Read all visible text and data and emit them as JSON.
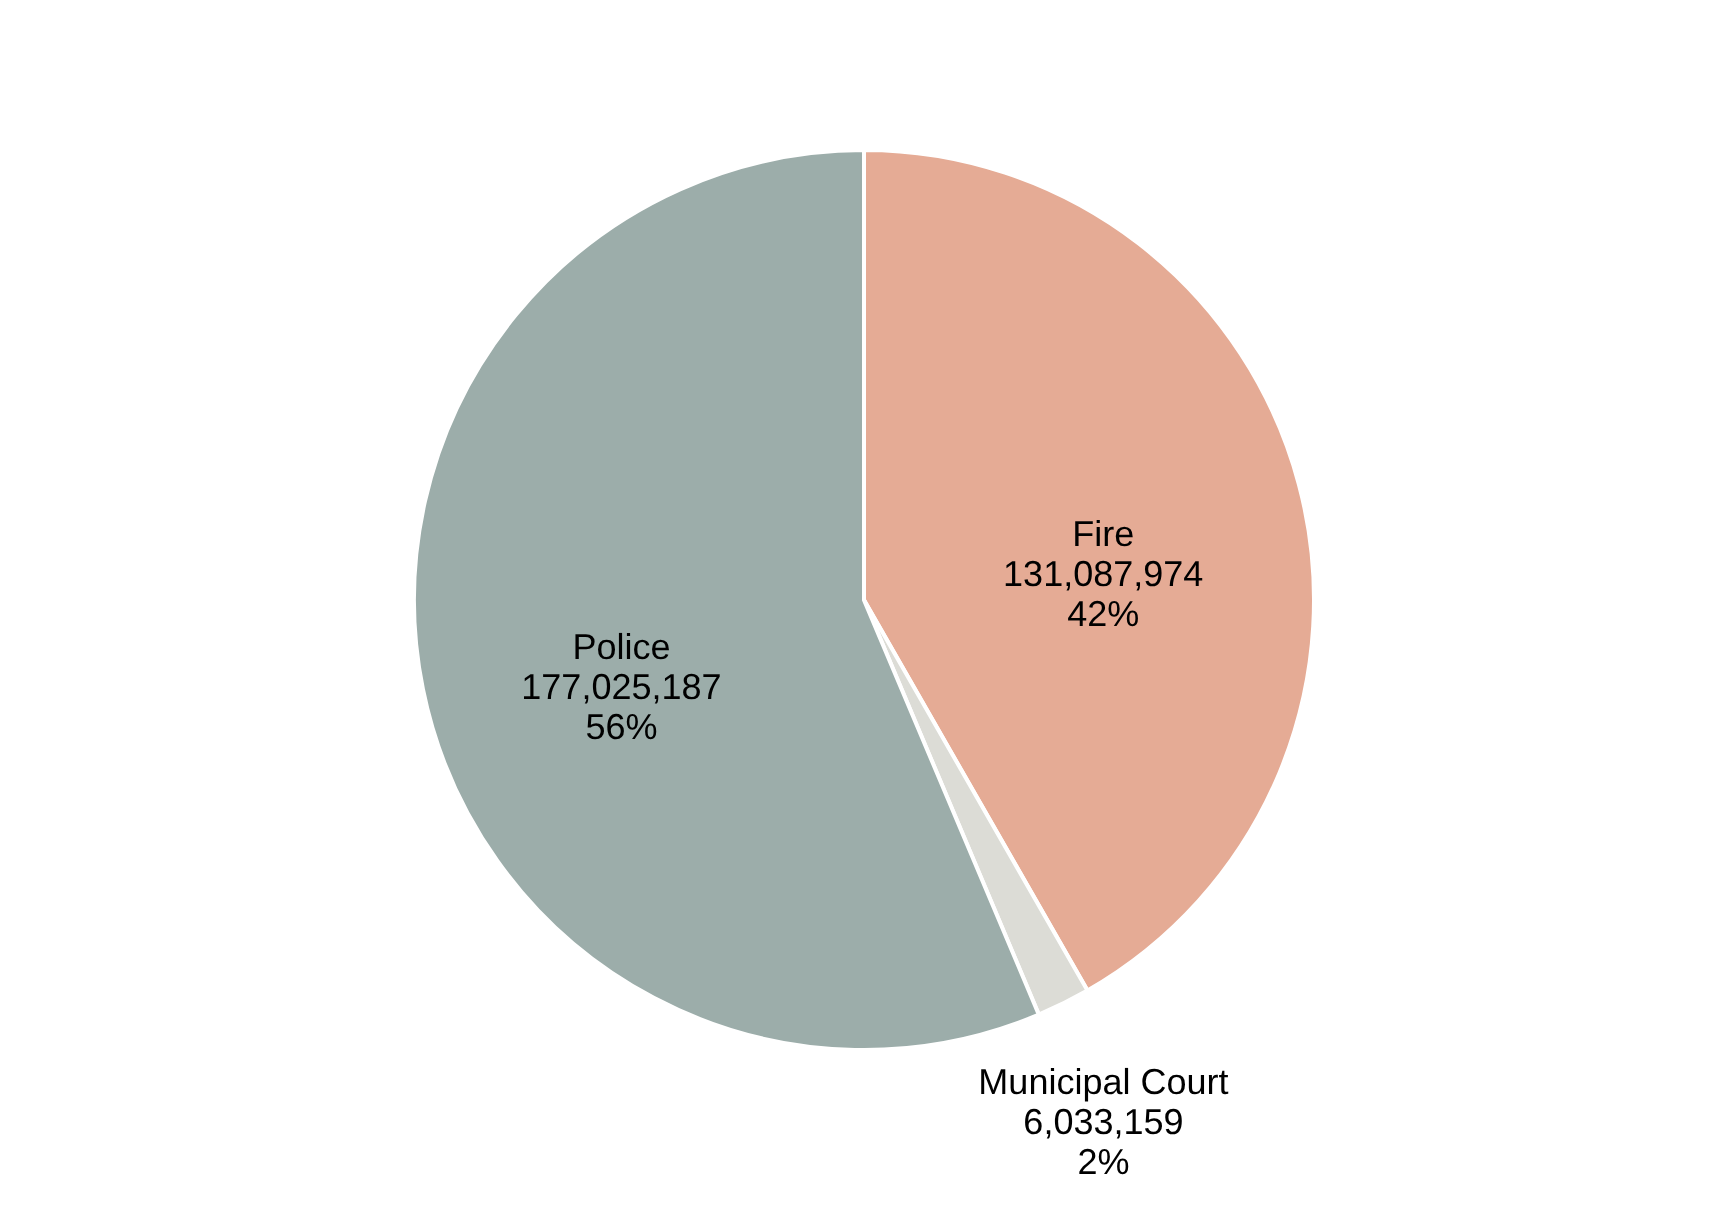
{
  "chart_data": {
    "type": "pie",
    "categories": [
      "Fire",
      "Municipal Court",
      "Police"
    ],
    "values": [
      131087974,
      6033159,
      177025187
    ],
    "colors": [
      "#e5ab95",
      "#dcdcd6",
      "#9cadaa"
    ],
    "value_labels": [
      "131,087,974\n42%",
      "6,033,159\n2%",
      "177,025,187\n56%"
    ]
  }
}
